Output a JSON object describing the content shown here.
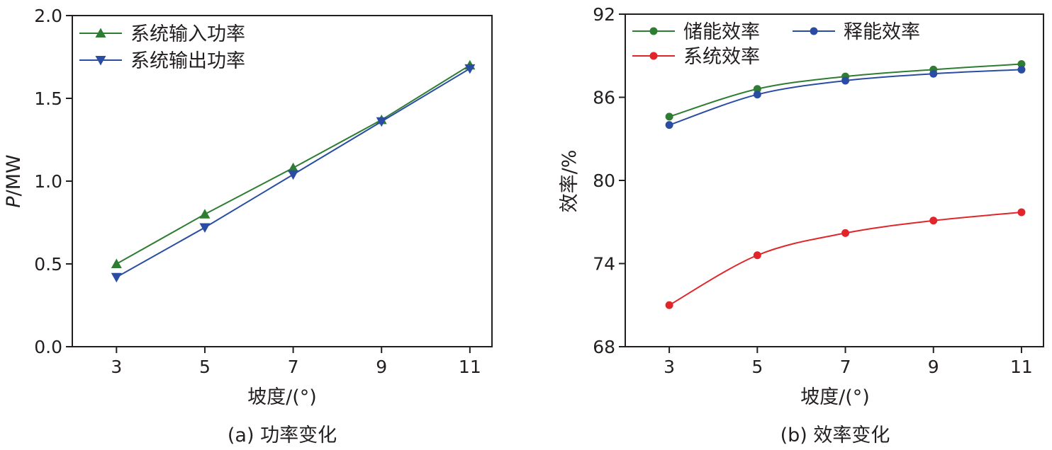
{
  "chart_data": [
    {
      "type": "line",
      "panel": "a",
      "caption": "(a) 功率变化",
      "xlabel": "坡度/(°)",
      "ylabel_italic": "P",
      "ylabel_rest": "/MW",
      "x": [
        3,
        5,
        7,
        9,
        11
      ],
      "xlim": [
        2,
        11.5
      ],
      "ylim": [
        0,
        2.0
      ],
      "xticks": [
        "3",
        "5",
        "7",
        "9",
        "11"
      ],
      "yticks": [
        "0.0",
        "0.5",
        "1.0",
        "1.5",
        "2.0"
      ],
      "grid": false,
      "legend_position": "top-left",
      "series": [
        {
          "name": "系统输入功率",
          "values": [
            0.5,
            0.8,
            1.08,
            1.37,
            1.7
          ],
          "color": "#2e7d32",
          "marker": "triangle-up"
        },
        {
          "name": "系统输出功率",
          "values": [
            0.42,
            0.72,
            1.04,
            1.36,
            1.68
          ],
          "color": "#2a4da3",
          "marker": "triangle-down"
        }
      ]
    },
    {
      "type": "line",
      "panel": "b",
      "caption": "(b) 效率变化",
      "xlabel": "坡度/(°)",
      "ylabel": "效率/%",
      "x": [
        3,
        5,
        7,
        9,
        11
      ],
      "xlim": [
        2,
        11.5
      ],
      "ylim": [
        68,
        92
      ],
      "xticks": [
        "3",
        "5",
        "7",
        "9",
        "11"
      ],
      "yticks": [
        "68",
        "74",
        "80",
        "86",
        "92"
      ],
      "grid": false,
      "legend_position": "top-left",
      "series": [
        {
          "name": "储能效率",
          "values": [
            84.6,
            86.6,
            87.5,
            88.0,
            88.4
          ],
          "color": "#2e7d32",
          "marker": "circle"
        },
        {
          "name": "释能效率",
          "values": [
            84.0,
            86.2,
            87.2,
            87.7,
            88.0
          ],
          "color": "#2a4da3",
          "marker": "circle"
        },
        {
          "name": "系统效率",
          "values": [
            71.0,
            74.6,
            76.2,
            77.1,
            77.7
          ],
          "color": "#e0262a",
          "marker": "circle"
        }
      ]
    }
  ]
}
